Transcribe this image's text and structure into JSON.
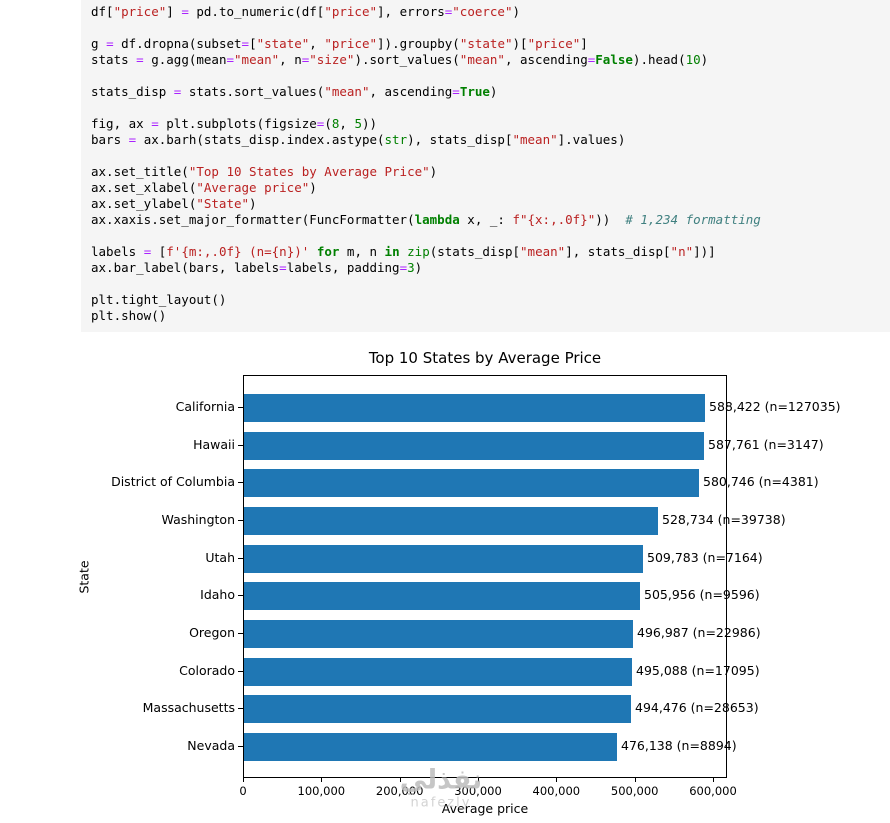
{
  "code": {
    "lines": [
      [
        [
          "n",
          "df["
        ],
        [
          "s",
          "\"price\""
        ],
        [
          "n",
          "] "
        ],
        [
          "o",
          "="
        ],
        [
          "n",
          " pd.to_numeric(df["
        ],
        [
          "s",
          "\"price\""
        ],
        [
          "n",
          "], errors"
        ],
        [
          "o",
          "="
        ],
        [
          "s",
          "\"coerce\""
        ],
        [
          "n",
          ")"
        ]
      ],
      [],
      [
        [
          "n",
          "g "
        ],
        [
          "o",
          "="
        ],
        [
          "n",
          " df.dropna(subset"
        ],
        [
          "o",
          "="
        ],
        [
          "n",
          "["
        ],
        [
          "s",
          "\"state\""
        ],
        [
          "n",
          ", "
        ],
        [
          "s",
          "\"price\""
        ],
        [
          "n",
          "]).groupby("
        ],
        [
          "s",
          "\"state\""
        ],
        [
          "n",
          ")["
        ],
        [
          "s",
          "\"price\""
        ],
        [
          "n",
          "]"
        ]
      ],
      [
        [
          "n",
          "stats "
        ],
        [
          "o",
          "="
        ],
        [
          "n",
          " g.agg(mean"
        ],
        [
          "o",
          "="
        ],
        [
          "s",
          "\"mean\""
        ],
        [
          "n",
          ", n"
        ],
        [
          "o",
          "="
        ],
        [
          "s",
          "\"size\""
        ],
        [
          "n",
          ").sort_values("
        ],
        [
          "s",
          "\"mean\""
        ],
        [
          "n",
          ", ascending"
        ],
        [
          "o",
          "="
        ],
        [
          "kc",
          "False"
        ],
        [
          "n",
          ").head("
        ],
        [
          "m",
          "10"
        ],
        [
          "n",
          ")"
        ]
      ],
      [],
      [
        [
          "n",
          "stats_disp "
        ],
        [
          "o",
          "="
        ],
        [
          "n",
          " stats.sort_values("
        ],
        [
          "s",
          "\"mean\""
        ],
        [
          "n",
          ", ascending"
        ],
        [
          "o",
          "="
        ],
        [
          "kc",
          "True"
        ],
        [
          "n",
          ")"
        ]
      ],
      [],
      [
        [
          "n",
          "fig, ax "
        ],
        [
          "o",
          "="
        ],
        [
          "n",
          " plt.subplots(figsize"
        ],
        [
          "o",
          "="
        ],
        [
          "n",
          "("
        ],
        [
          "m",
          "8"
        ],
        [
          "n",
          ", "
        ],
        [
          "m",
          "5"
        ],
        [
          "n",
          "))"
        ]
      ],
      [
        [
          "n",
          "bars "
        ],
        [
          "o",
          "="
        ],
        [
          "n",
          " ax.barh(stats_disp.index.astype("
        ],
        [
          "nb",
          "str"
        ],
        [
          "n",
          "), stats_disp["
        ],
        [
          "s",
          "\"mean\""
        ],
        [
          "n",
          "].values)"
        ]
      ],
      [],
      [
        [
          "n",
          "ax.set_title("
        ],
        [
          "s",
          "\"Top 10 States by Average Price\""
        ],
        [
          "n",
          ")"
        ]
      ],
      [
        [
          "n",
          "ax.set_xlabel("
        ],
        [
          "s",
          "\"Average price\""
        ],
        [
          "n",
          ")"
        ]
      ],
      [
        [
          "n",
          "ax.set_ylabel("
        ],
        [
          "s",
          "\"State\""
        ],
        [
          "n",
          ")"
        ]
      ],
      [
        [
          "n",
          "ax.xaxis.set_major_formatter(FuncFormatter("
        ],
        [
          "k",
          "lambda"
        ],
        [
          "n",
          " x, _: "
        ],
        [
          "s",
          "f\"{x:,.0f}\""
        ],
        [
          "n",
          "))  "
        ],
        [
          "c",
          "# 1,234 formatting"
        ]
      ],
      [],
      [
        [
          "n",
          "labels "
        ],
        [
          "o",
          "="
        ],
        [
          "n",
          " ["
        ],
        [
          "s",
          "f'{m:,.0f} (n={n})'"
        ],
        [
          "n",
          " "
        ],
        [
          "k",
          "for"
        ],
        [
          "n",
          " m, n "
        ],
        [
          "k",
          "in"
        ],
        [
          "n",
          " "
        ],
        [
          "nb",
          "zip"
        ],
        [
          "n",
          "(stats_disp["
        ],
        [
          "s",
          "\"mean\""
        ],
        [
          "n",
          "], stats_disp["
        ],
        [
          "s",
          "\"n\""
        ],
        [
          "n",
          "])]"
        ]
      ],
      [
        [
          "n",
          "ax.bar_label(bars, labels"
        ],
        [
          "o",
          "="
        ],
        [
          "n",
          "labels, padding"
        ],
        [
          "o",
          "="
        ],
        [
          "m",
          "3"
        ],
        [
          "n",
          ")"
        ]
      ],
      [],
      [
        [
          "n",
          "plt.tight_layout()"
        ]
      ],
      [
        [
          "n",
          "plt.show()"
        ]
      ]
    ]
  },
  "chart_data": {
    "type": "bar",
    "orientation": "horizontal",
    "title": "Top 10 States by Average Price",
    "xlabel": "Average price",
    "ylabel": "State",
    "categories": [
      "California",
      "Hawaii",
      "District of Columbia",
      "Washington",
      "Utah",
      "Idaho",
      "Oregon",
      "Colorado",
      "Massachusetts",
      "Nevada"
    ],
    "values": [
      588422,
      587761,
      580746,
      528734,
      509783,
      505956,
      496987,
      495088,
      494476,
      476138
    ],
    "counts": [
      127035,
      3147,
      4381,
      39738,
      7164,
      9596,
      22986,
      17095,
      28653,
      8894
    ],
    "bar_labels": [
      "588,422 (n=127035)",
      "587,761 (n=3147)",
      "580,746 (n=4381)",
      "528,734 (n=39738)",
      "509,783 (n=7164)",
      "505,956 (n=9596)",
      "496,987 (n=22986)",
      "495,088 (n=17095)",
      "494,476 (n=28653)",
      "476,138 (n=8894)"
    ],
    "xticks": [
      0,
      100000,
      200000,
      300000,
      400000,
      500000,
      600000
    ],
    "xtick_labels": [
      "0",
      "100,000",
      "200,000",
      "300,000",
      "400,000",
      "500,000",
      "600,000"
    ],
    "xlim": [
      0,
      618000
    ],
    "bar_color": "#1f77b4",
    "grid": false,
    "legend": null
  },
  "watermark": {
    "line1": "نفذلي",
    "line2": "nafezly"
  }
}
